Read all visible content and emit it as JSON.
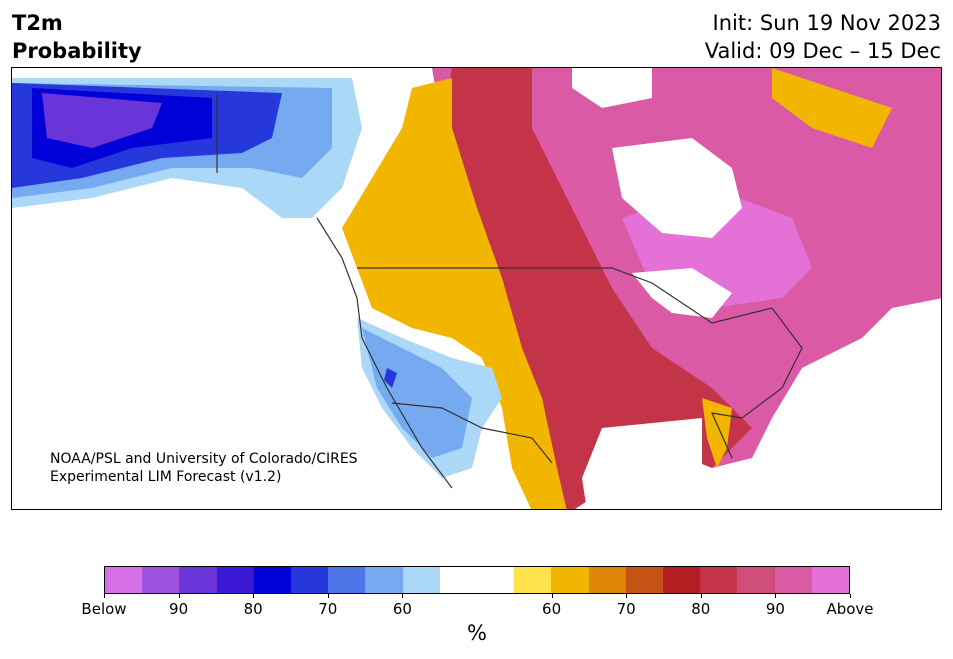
{
  "title": {
    "line1": "T2m",
    "line2": "Probability"
  },
  "forecast": {
    "init": "Init: Sun 19 Nov 2023",
    "valid": "Valid: 09 Dec – 15 Dec"
  },
  "credit": {
    "line1": "NOAA/PSL and University of Colorado/CIRES",
    "line2": "Experimental LIM Forecast (v1.2)"
  },
  "colorbar": {
    "colors": [
      "#d670e8",
      "#9f52e0",
      "#6a35d8",
      "#3a18d4",
      "#0000d8",
      "#2638dc",
      "#4e74e8",
      "#76aaf0",
      "#acd8f8",
      "#ffffff",
      "#ffffff",
      "#ffe24c",
      "#f2b600",
      "#de8406",
      "#c55414",
      "#b21e22",
      "#c43448",
      "#d04e7a",
      "#da5aa6",
      "#e472d6"
    ],
    "tick_labels": [
      "Below",
      "90",
      "80",
      "70",
      "60",
      "60",
      "70",
      "80",
      "90",
      "Above"
    ],
    "unit": "%"
  },
  "map": {
    "region": "North America",
    "colors": {
      "above_90": "#e472d6",
      "above_80": "#da5aa6",
      "above_70": "#c43448",
      "above_60": "#f2b600",
      "below_60": "#acd8f8",
      "below_70": "#76aaf0",
      "below_80": "#2638dc",
      "below_90": "#0000d8",
      "below_max": "#6a35d8",
      "neutral": "#ffffff",
      "border": "#333333"
    }
  }
}
